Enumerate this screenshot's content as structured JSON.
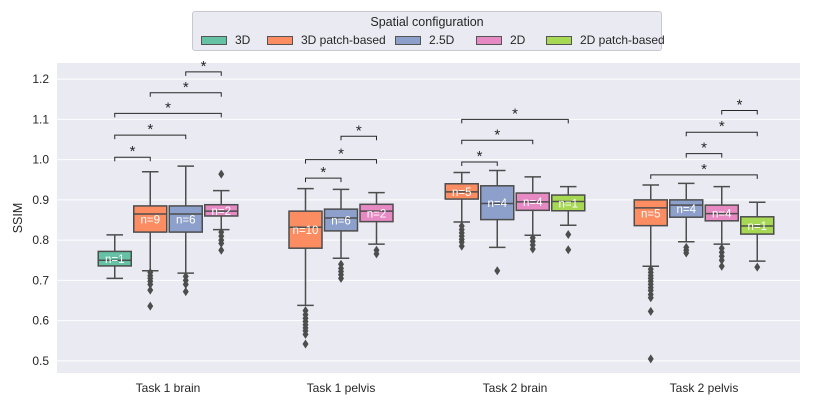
{
  "chart_data": {
    "type": "box",
    "ylabel": "SSIM",
    "ylim": [
      0.47,
      1.24
    ],
    "yticks": [
      0.5,
      0.6,
      0.7,
      0.8,
      0.9,
      1.0,
      1.1,
      1.2
    ],
    "grid": true,
    "legend": {
      "title": "Spatial configuration",
      "placement": "top-center",
      "entries": [
        "3D",
        "3D patch-based",
        "2.5D",
        "2D",
        "2D patch-based"
      ]
    },
    "colors": {
      "3D": "#66c2a5",
      "3D patch-based": "#fc8d62",
      "2.5D": "#8da0cb",
      "2D": "#e78ac3",
      "2D patch-based": "#a6d854"
    },
    "categories": [
      "Task 1 brain",
      "Task 1 pelvis",
      "Task 2 brain",
      "Task 2 pelvis"
    ],
    "groups": [
      {
        "category": "Task 1 brain",
        "boxes": [
          {
            "series": "3D",
            "q1": 0.736,
            "median": 0.75,
            "q3": 0.772,
            "whisker_low": 0.705,
            "whisker_high": 0.813,
            "outliers": [],
            "n_label": "n=1"
          },
          {
            "series": "3D patch-based",
            "q1": 0.82,
            "median": 0.865,
            "q3": 0.885,
            "whisker_low": 0.724,
            "whisker_high": 0.97,
            "outliers": [
              0.72,
              0.712,
              0.705,
              0.698,
              0.69,
              0.676,
              0.636
            ],
            "n_label": "n=9"
          },
          {
            "series": "2.5D",
            "q1": 0.82,
            "median": 0.865,
            "q3": 0.885,
            "whisker_low": 0.718,
            "whisker_high": 0.984,
            "outliers": [
              0.71,
              0.7,
              0.69,
              0.672
            ],
            "n_label": "n=6"
          },
          {
            "series": "2D",
            "q1": 0.86,
            "median": 0.872,
            "q3": 0.888,
            "whisker_low": 0.826,
            "whisker_high": 0.923,
            "outliers": [
              0.964,
              0.82,
              0.81,
              0.8,
              0.792,
              0.775
            ],
            "n_label": "n=2"
          }
        ],
        "significance": [
          {
            "from": "3D",
            "to": "3D patch-based",
            "y": 1.006,
            "label": "*"
          },
          {
            "from": "3D",
            "to": "2.5D",
            "y": 1.061,
            "label": "*"
          },
          {
            "from": "3D",
            "to": "2D",
            "y": 1.115,
            "label": "*"
          },
          {
            "from": "3D patch-based",
            "to": "2D",
            "y": 1.166,
            "label": "*"
          },
          {
            "from": "2.5D",
            "to": "2D",
            "y": 1.218,
            "label": "*"
          }
        ]
      },
      {
        "category": "Task 1 pelvis",
        "boxes": [
          {
            "series": "3D patch-based",
            "q1": 0.78,
            "median": 0.832,
            "q3": 0.872,
            "whisker_low": 0.638,
            "whisker_high": 0.928,
            "outliers": [
              0.625,
              0.615,
              0.606,
              0.598,
              0.59,
              0.582,
              0.575,
              0.566,
              0.542
            ],
            "n_label": "n=10"
          },
          {
            "series": "2.5D",
            "q1": 0.823,
            "median": 0.855,
            "q3": 0.877,
            "whisker_low": 0.755,
            "whisker_high": 0.926,
            "outliers": [
              0.74,
              0.73,
              0.722,
              0.714,
              0.705
            ],
            "n_label": "n=6"
          },
          {
            "series": "2D",
            "q1": 0.846,
            "median": 0.872,
            "q3": 0.889,
            "whisker_low": 0.79,
            "whisker_high": 0.918,
            "outliers": [
              0.775,
              0.766
            ],
            "n_label": "n=2"
          }
        ],
        "significance": [
          {
            "from": "3D patch-based",
            "to": "2.5D",
            "y": 0.954,
            "label": "*"
          },
          {
            "from": "3D patch-based",
            "to": "2D",
            "y": 1.0,
            "label": "*"
          },
          {
            "from": "2.5D",
            "to": "2D",
            "y": 1.058,
            "label": "*"
          }
        ]
      },
      {
        "category": "Task 2 brain",
        "boxes": [
          {
            "series": "3D patch-based",
            "q1": 0.902,
            "median": 0.92,
            "q3": 0.94,
            "whisker_low": 0.845,
            "whisker_high": 0.968,
            "outliers": [
              0.835,
              0.826,
              0.818,
              0.81,
              0.802,
              0.795,
              0.785
            ],
            "n_label": "n=5"
          },
          {
            "series": "2.5D",
            "q1": 0.851,
            "median": 0.891,
            "q3": 0.935,
            "whisker_low": 0.782,
            "whisker_high": 0.973,
            "outliers": [
              0.724
            ],
            "n_label": "n=4"
          },
          {
            "series": "2D",
            "q1": 0.874,
            "median": 0.895,
            "q3": 0.917,
            "whisker_low": 0.812,
            "whisker_high": 0.957,
            "outliers": [
              0.806,
              0.797,
              0.788,
              0.778
            ],
            "n_label": "n=4"
          },
          {
            "series": "2D patch-based",
            "q1": 0.873,
            "median": 0.896,
            "q3": 0.912,
            "whisker_low": 0.837,
            "whisker_high": 0.933,
            "outliers": [
              0.814,
              0.776
            ],
            "n_label": "n=1"
          }
        ],
        "significance": [
          {
            "from": "3D patch-based",
            "to": "2.5D",
            "y": 0.994,
            "label": "*"
          },
          {
            "from": "3D patch-based",
            "to": "2D",
            "y": 1.048,
            "label": "*"
          },
          {
            "from": "3D patch-based",
            "to": "2D patch-based",
            "y": 1.1,
            "label": "*"
          }
        ]
      },
      {
        "category": "Task 2 pelvis",
        "boxes": [
          {
            "series": "3D patch-based",
            "q1": 0.836,
            "median": 0.88,
            "q3": 0.9,
            "whisker_low": 0.735,
            "whisker_high": 0.937,
            "outliers": [
              0.728,
              0.72,
              0.712,
              0.705,
              0.698,
              0.69,
              0.682,
              0.675,
              0.665,
              0.657,
              0.623,
              0.505
            ],
            "n_label": "n=5"
          },
          {
            "series": "2.5D",
            "q1": 0.857,
            "median": 0.887,
            "q3": 0.9,
            "whisker_low": 0.796,
            "whisker_high": 0.941,
            "outliers": [
              0.782,
              0.775,
              0.768
            ],
            "n_label": "n=4"
          },
          {
            "series": "2D",
            "q1": 0.848,
            "median": 0.866,
            "q3": 0.887,
            "whisker_low": 0.79,
            "whisker_high": 0.933,
            "outliers": [
              0.78,
              0.77,
              0.76,
              0.75,
              0.735
            ],
            "n_label": "n=4"
          },
          {
            "series": "2D patch-based",
            "q1": 0.815,
            "median": 0.835,
            "q3": 0.858,
            "whisker_low": 0.748,
            "whisker_high": 0.894,
            "outliers": [
              0.733
            ],
            "n_label": "n=1"
          }
        ],
        "significance": [
          {
            "from": "3D patch-based",
            "to": "2D patch-based",
            "y": 0.962,
            "label": "*"
          },
          {
            "from": "2.5D",
            "to": "2D",
            "y": 1.015,
            "label": "*"
          },
          {
            "from": "2.5D",
            "to": "2D patch-based",
            "y": 1.068,
            "label": "*"
          },
          {
            "from": "2D",
            "to": "2D patch-based",
            "y": 1.122,
            "label": "*"
          }
        ]
      }
    ]
  }
}
